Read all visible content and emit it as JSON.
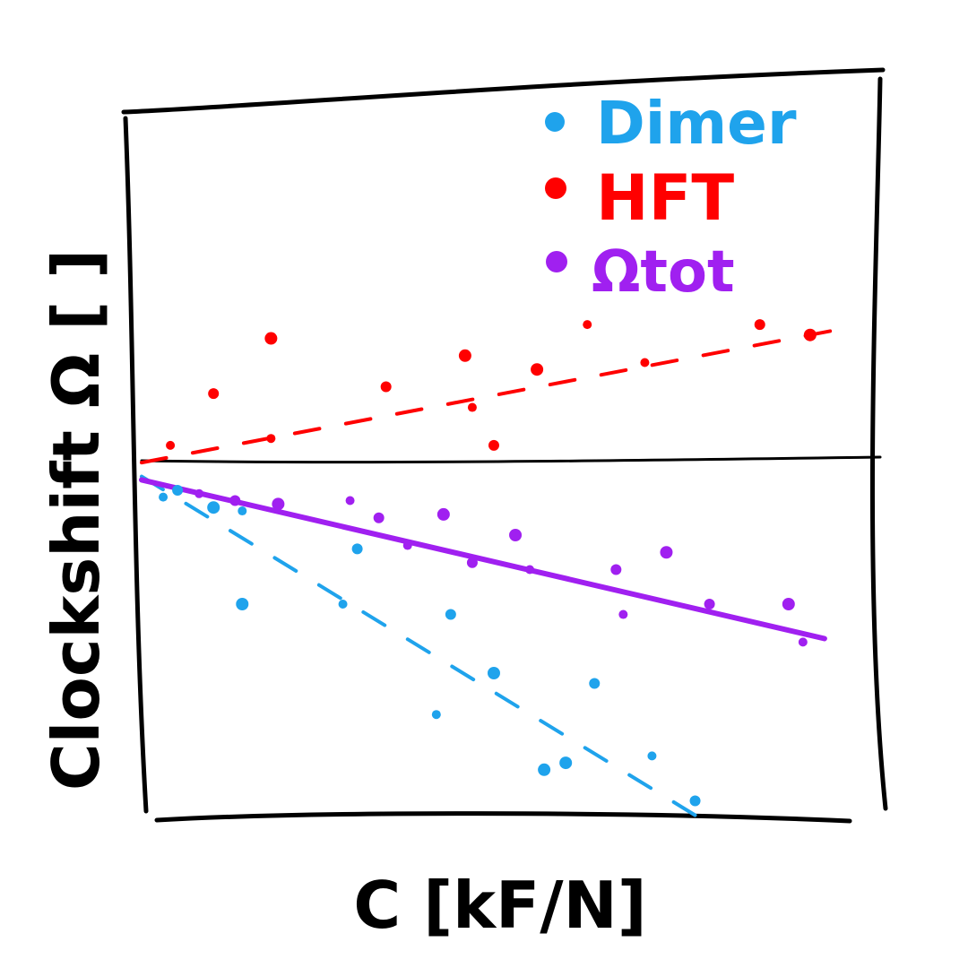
{
  "chart_data": {
    "type": "scatter",
    "title": "",
    "xlabel": "C [kF/N]",
    "ylabel": "Clockshift Ω [ ]",
    "xlim": [
      0,
      1
    ],
    "ylim": [
      -1,
      1
    ],
    "grid": false,
    "legend_position": "top-right",
    "colors": {
      "Dimer": "#1fa3ec",
      "HFT": "#ff0000",
      "Ωtot": "#a020f0"
    },
    "legend": [
      "Dimer",
      "HFT",
      "Ωtot"
    ],
    "series": [
      {
        "name": "Dimer",
        "color": "#1fa3ec",
        "points": [
          [
            0.03,
            -0.09
          ],
          [
            0.05,
            -0.07
          ],
          [
            0.1,
            -0.12
          ],
          [
            0.14,
            -0.13
          ],
          [
            0.3,
            -0.24
          ],
          [
            0.14,
            -0.4
          ],
          [
            0.28,
            -0.4
          ],
          [
            0.43,
            -0.43
          ],
          [
            0.49,
            -0.6
          ],
          [
            0.41,
            -0.72
          ],
          [
            0.63,
            -0.63
          ],
          [
            0.59,
            -0.86
          ],
          [
            0.71,
            -0.84
          ],
          [
            0.77,
            -0.97
          ],
          [
            0.56,
            -0.88
          ]
        ],
        "trend": [
          [
            0.0,
            -0.03
          ],
          [
            0.8,
            -1.05
          ]
        ]
      },
      {
        "name": "HFT",
        "color": "#ff0000",
        "points": [
          [
            0.04,
            0.06
          ],
          [
            0.1,
            0.21
          ],
          [
            0.18,
            0.37
          ],
          [
            0.18,
            0.08
          ],
          [
            0.34,
            0.23
          ],
          [
            0.45,
            0.32
          ],
          [
            0.46,
            0.17
          ],
          [
            0.49,
            0.06
          ],
          [
            0.55,
            0.28
          ],
          [
            0.62,
            0.41
          ],
          [
            0.86,
            0.41
          ],
          [
            0.93,
            0.38
          ],
          [
            0.7,
            0.3
          ]
        ],
        "trend": [
          [
            0.0,
            0.01
          ],
          [
            0.98,
            0.4
          ]
        ]
      },
      {
        "name": "Ωtot",
        "color": "#a020f0",
        "points": [
          [
            0.08,
            -0.08
          ],
          [
            0.13,
            -0.1
          ],
          [
            0.19,
            -0.11
          ],
          [
            0.29,
            -0.1
          ],
          [
            0.33,
            -0.15
          ],
          [
            0.42,
            -0.14
          ],
          [
            0.37,
            -0.23
          ],
          [
            0.46,
            -0.28
          ],
          [
            0.52,
            -0.2
          ],
          [
            0.54,
            -0.3
          ],
          [
            0.66,
            -0.3
          ],
          [
            0.73,
            -0.25
          ],
          [
            0.67,
            -0.43
          ],
          [
            0.79,
            -0.4
          ],
          [
            0.9,
            -0.4
          ],
          [
            0.92,
            -0.51
          ]
        ],
        "trend": [
          [
            0.0,
            -0.04
          ],
          [
            0.95,
            -0.5
          ]
        ]
      }
    ]
  }
}
